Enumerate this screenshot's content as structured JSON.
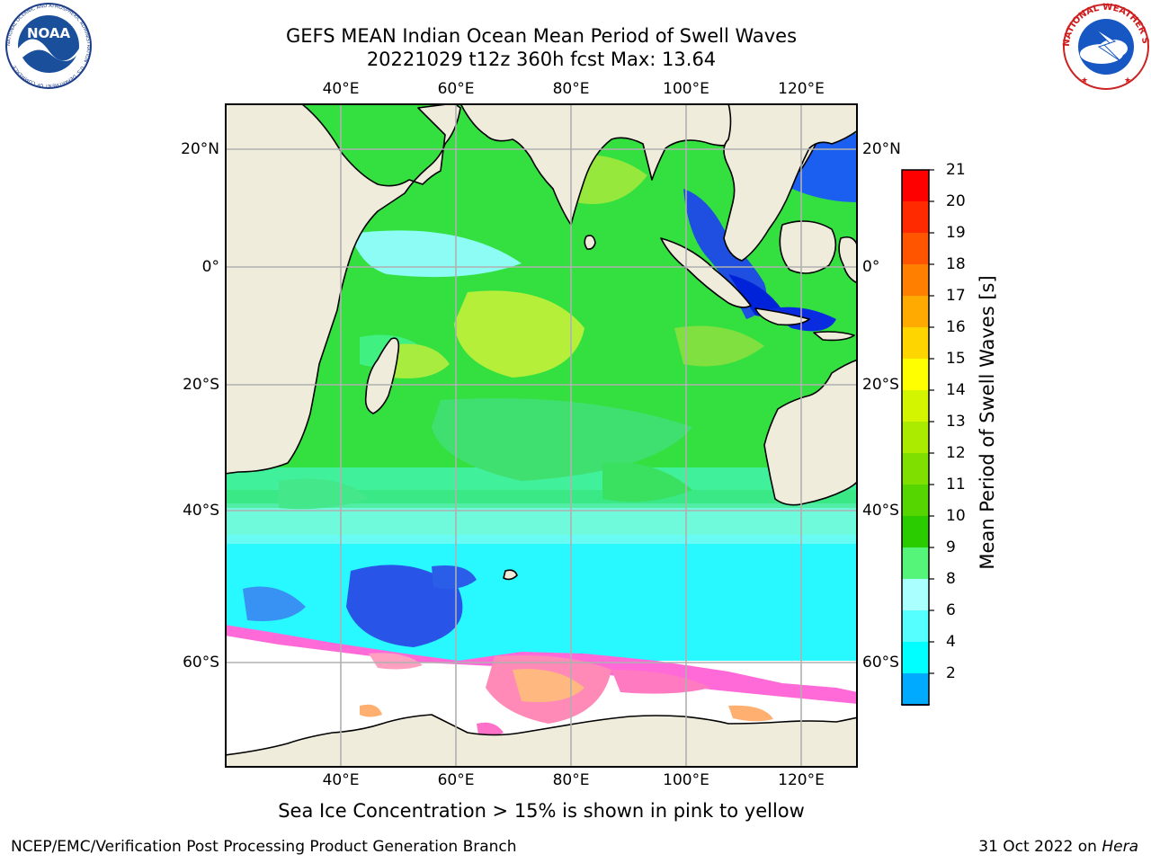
{
  "title": {
    "line1": "GEFS MEAN Indian Ocean Mean Period of Swell Waves",
    "line2": "20221029 t12z 360h fcst   Max: 13.64"
  },
  "map": {
    "lon_labels": [
      "40°E",
      "60°E",
      "80°E",
      "100°E",
      "120°E"
    ],
    "lat_labels": [
      "20°N",
      "0°",
      "20°S",
      "40°S",
      "60°S"
    ],
    "land_color": "#efecdc",
    "grid_color": "#b0b0b0",
    "ice_note": "Sea Ice Concentration > 15% is shown in pink to yellow"
  },
  "colorbar": {
    "label": "Mean Period of Swell Waves [s]",
    "ticks": [
      "21",
      "20",
      "19",
      "18",
      "17",
      "16",
      "15",
      "14",
      "13",
      "12",
      "11",
      "10",
      "9",
      "8",
      "6",
      "4",
      "2"
    ],
    "colors": [
      "#ff0000",
      "#ff2a00",
      "#ff5500",
      "#ff8000",
      "#ffaa00",
      "#ffd500",
      "#ffff00",
      "#d4f500",
      "#aaeb00",
      "#7fe000",
      "#55d600",
      "#2acc00",
      "#55f57a",
      "#aaffff",
      "#55ffff",
      "#00ffff",
      "#00aaff",
      "#0000ff"
    ]
  },
  "logos": {
    "noaa": "NOAA",
    "noaa_ring": "NATIONAL OCEANIC AND ATMOSPHERIC ADMINISTRATION · U.S. DEPARTMENT OF COMMERCE",
    "nws_ring": "NATIONAL WEATHER SERVICE"
  },
  "footer": {
    "left": "NCEP/EMC/Verification Post Processing Product Generation Branch",
    "right_date": "31 Oct 2022 on",
    "right_host": "Hera"
  }
}
